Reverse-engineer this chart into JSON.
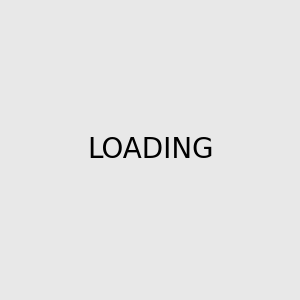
{
  "background_color": "#e8e8e8",
  "bond_color": "#1a1a1a",
  "n_color": "#0000ff",
  "o_color": "#ff0000",
  "figsize": [
    3.0,
    3.0
  ],
  "dpi": 100
}
